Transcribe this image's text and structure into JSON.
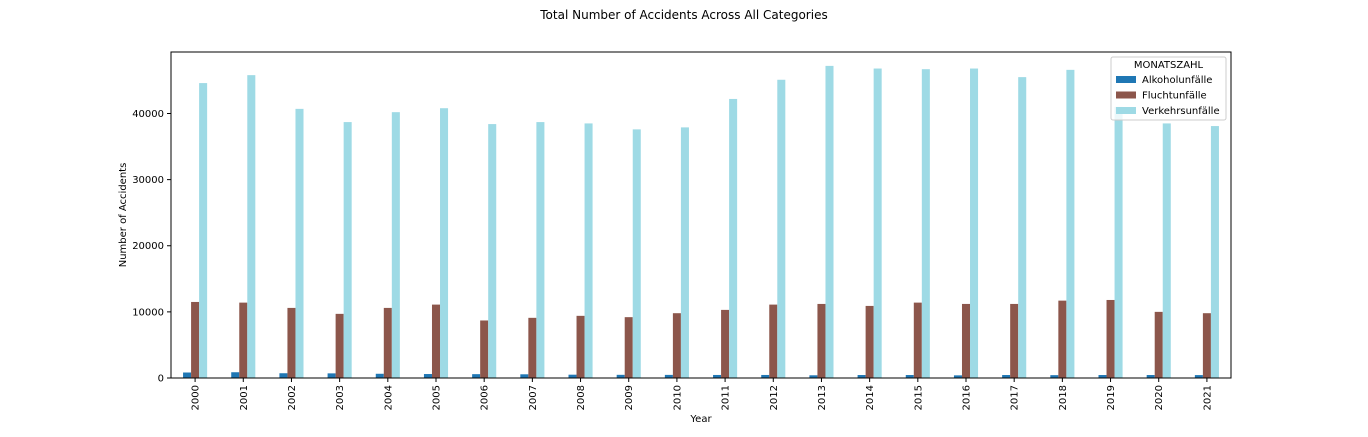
{
  "chart_data": {
    "type": "bar",
    "title": "Total Number of Accidents Across All Categories",
    "xlabel": "Year",
    "ylabel": "Number of Accidents",
    "categories": [
      "2000",
      "2001",
      "2002",
      "2003",
      "2004",
      "2005",
      "2006",
      "2007",
      "2008",
      "2009",
      "2010",
      "2011",
      "2012",
      "2013",
      "2014",
      "2015",
      "2016",
      "2017",
      "2018",
      "2019",
      "2020",
      "2021"
    ],
    "ylim": [
      0,
      49300
    ],
    "yticks": [
      0,
      10000,
      20000,
      30000,
      40000
    ],
    "grid": false,
    "legend": {
      "title": "MONATSZAHL",
      "placement": "upper right"
    },
    "series": [
      {
        "name": "Alkoholunfälle",
        "color": "#1f77b4",
        "values": [
          830,
          870,
          720,
          700,
          640,
          600,
          580,
          560,
          500,
          480,
          470,
          460,
          460,
          410,
          450,
          450,
          400,
          450,
          430,
          450,
          450,
          440
        ]
      },
      {
        "name": "Fluchtunfälle",
        "color": "#8c564b",
        "values": [
          11500,
          11400,
          10600,
          9700,
          10600,
          11100,
          8700,
          9100,
          9400,
          9200,
          9800,
          10300,
          11100,
          11200,
          10900,
          11400,
          11200,
          11200,
          11700,
          11800,
          10000,
          9800
        ]
      },
      {
        "name": "Verkehrsunfälle",
        "color": "#9edae5",
        "values": [
          44600,
          45800,
          40700,
          38700,
          40200,
          40800,
          38400,
          38700,
          38500,
          37600,
          37900,
          42200,
          45100,
          47200,
          46800,
          46700,
          46800,
          45500,
          46600,
          41000,
          38500,
          38100
        ]
      }
    ]
  }
}
